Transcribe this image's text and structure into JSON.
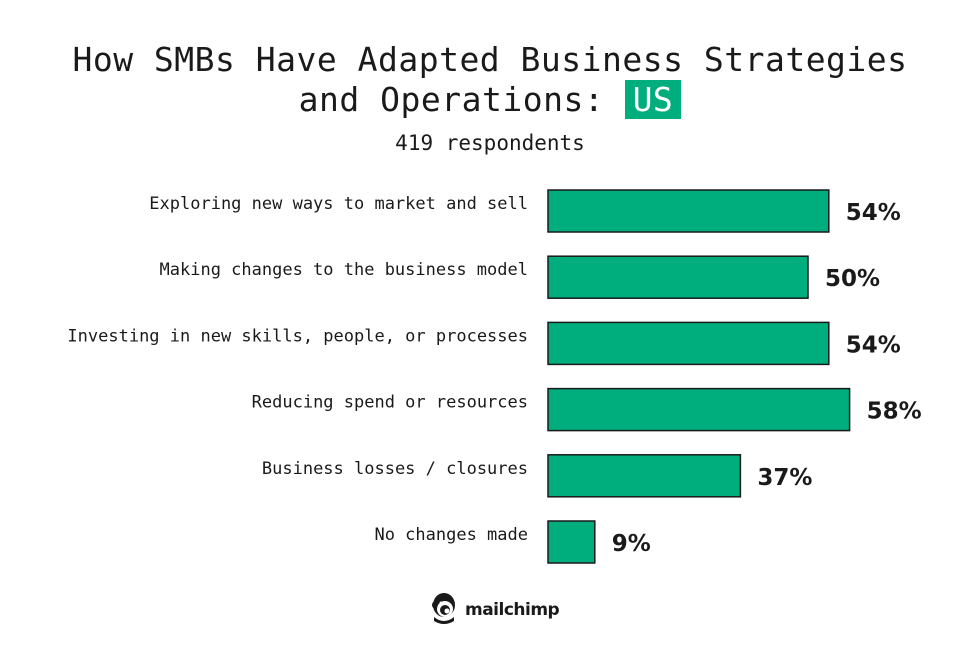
{
  "header": {
    "title_line1": "How SMBs Have Adapted Business Strategies",
    "title_line2_prefix": "and Operations: ",
    "title_highlight": "US",
    "subtitle": "419 respondents"
  },
  "brand": {
    "name": "mailchimp",
    "icon": "freddie-chimp-logo-icon"
  },
  "colors": {
    "bar": "#00ad7c",
    "bar_stroke": "#1a1a1a",
    "highlight": "#00ad7c"
  },
  "chart_data": {
    "type": "bar",
    "orientation": "horizontal",
    "categories": [
      "Exploring new ways to market and sell",
      "Making changes to the business model",
      "Investing in new skills, people, or processes",
      "Reducing spend or resources",
      "Business losses / closures",
      "No changes made"
    ],
    "values": [
      54,
      50,
      54,
      58,
      37,
      9
    ],
    "value_labels": [
      "54%",
      "50%",
      "54%",
      "58%",
      "37%",
      "9%"
    ],
    "title": "How SMBs Have Adapted Business Strategies and Operations: US",
    "subtitle": "419 respondents",
    "xlim": [
      0,
      100
    ],
    "grid": false,
    "legend": "none"
  }
}
